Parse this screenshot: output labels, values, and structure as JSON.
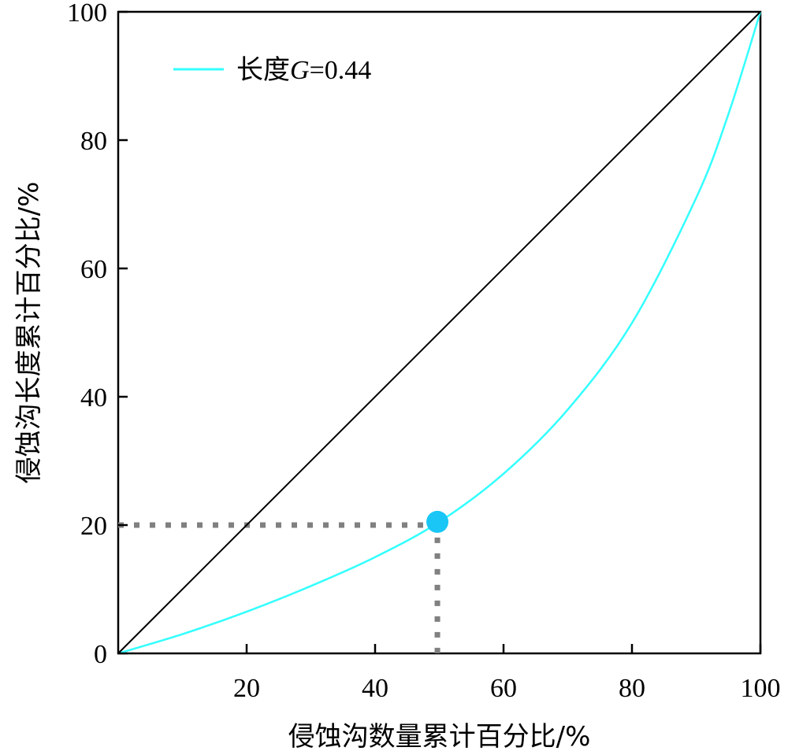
{
  "chart_data": {
    "type": "line",
    "xlabel": "侵蚀沟数量累计百分比/%",
    "ylabel": "侵蚀沟长度累计百分比/%",
    "xlim": [
      0,
      100
    ],
    "ylim": [
      0,
      100
    ],
    "x_ticks": [
      20,
      40,
      60,
      80,
      100
    ],
    "y_ticks": [
      0,
      20,
      40,
      60,
      80,
      100
    ],
    "grid": false,
    "legend": {
      "position": "top-left",
      "label_prefix": "长度",
      "label_var": "G",
      "label_suffix": "=0.44"
    },
    "series": [
      {
        "name": "长度G=0.44",
        "color": "#33ffff",
        "x": [
          0,
          10,
          20,
          30,
          40,
          50,
          60,
          70,
          80,
          90,
          95,
          100
        ],
        "y": [
          0,
          3,
          6.5,
          10.5,
          15,
          20.5,
          28,
          38,
          51.5,
          71,
          84,
          100
        ]
      },
      {
        "name": "",
        "color": "#000000",
        "x": [
          0,
          100
        ],
        "y": [
          0,
          100
        ]
      }
    ],
    "highlight_point": {
      "x": 49.7,
      "y": 20.5,
      "color": "#1ac6f5"
    },
    "guide_color": "#808080"
  }
}
